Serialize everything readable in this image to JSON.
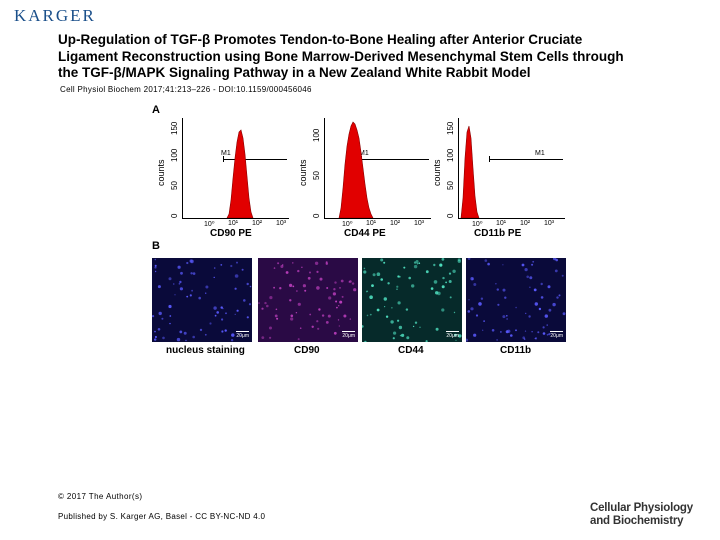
{
  "header": {
    "logo_text": "KARGER",
    "title_lines": [
      "Up-Regulation of TGF-β Promotes Tendon-to-Bone Healing after Anterior Cruciate",
      "Ligament Reconstruction using Bone Marrow-Derived Mesenchymal Stem Cells through",
      "the TGF-β/MAPK Signaling Pathway in a New Zealand White Rabbit Model"
    ],
    "citation": "Cell Physiol Biochem 2017;41:213–226 - DOI:10.1159/000456046"
  },
  "figure": {
    "panel_a": "A",
    "panel_b": "B",
    "histograms": [
      {
        "xlabel": "CD90 PE",
        "ylabel": "counts",
        "yticks": [
          "0",
          "50",
          "100",
          "150"
        ],
        "xticks": [
          "10⁰",
          "10¹",
          "10²",
          "10³"
        ],
        "marker": "M1"
      },
      {
        "xlabel": "CD44 PE",
        "ylabel": "counts",
        "yticks": [
          "0",
          "50",
          "100"
        ],
        "xticks": [
          "10⁰",
          "10¹",
          "10²",
          "10³"
        ],
        "marker": "M1"
      },
      {
        "xlabel": "CD11b PE",
        "ylabel": "counts",
        "yticks": [
          "0",
          "50",
          "100",
          "150"
        ],
        "xticks": [
          "10⁰",
          "10¹",
          "10²",
          "10³"
        ],
        "marker": "M1"
      }
    ],
    "micrographs": [
      {
        "label": "nucleus staining",
        "scale": "20μm",
        "bg": "#0a0a3a",
        "dot": "#5a5aff"
      },
      {
        "label": "CD90",
        "scale": "20μm",
        "bg": "#2a0a45",
        "dot": "#c040c0"
      },
      {
        "label": "CD44",
        "scale": "20μm",
        "bg": "#062a2a",
        "dot": "#4fe0c0"
      },
      {
        "label": "CD11b",
        "scale": "20μm",
        "bg": "#0a0a3a",
        "dot": "#5a5aff"
      }
    ]
  },
  "footer": {
    "copyright": "© 2017 The Author(s)",
    "published": "Published by S. Karger AG, Basel - CC BY-NC-ND 4.0",
    "journal_lines": [
      "Cellular Physiology",
      "and Biochemistry"
    ]
  }
}
